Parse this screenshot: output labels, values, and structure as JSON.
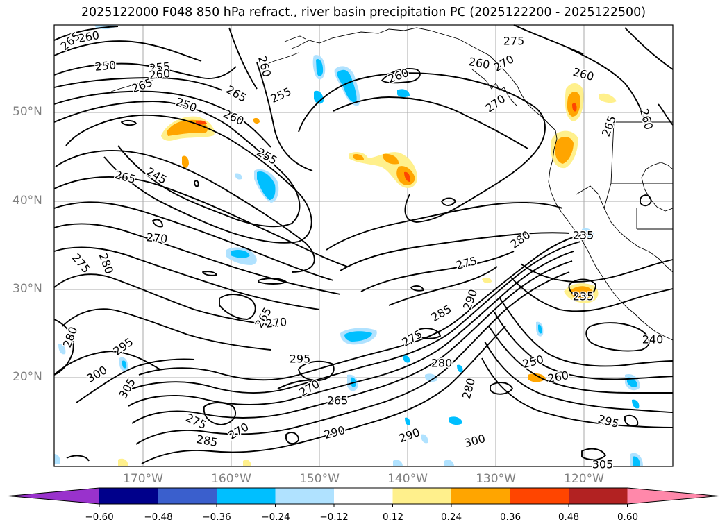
{
  "title": "2025122000 F048 850 hPa refract., river basin precipitation PC (2025122200 - 2025122500)",
  "lat_labels": [
    "50°N",
    "40°N",
    "30°N",
    "20°N"
  ],
  "lon_labels": [
    "170°W",
    "160°W",
    "150°W",
    "140°W",
    "130°W",
    "120°W"
  ],
  "colorbar": {
    "ticks": [
      "−0.60",
      "−0.48",
      "−0.36",
      "−0.24",
      "−0.12",
      "0.12",
      "0.24",
      "0.36",
      "0.48",
      "0.60"
    ],
    "colors": [
      "#9932cc",
      "#00008b",
      "#3a5fcd",
      "#00bfff",
      "#b0e2ff",
      "#ffffff",
      "#fff08c",
      "#ffa500",
      "#ff4500",
      "#b22222",
      "#ff88aa"
    ]
  },
  "contour_labels": [
    "265",
    "260",
    "250",
    "255",
    "260",
    "265",
    "260",
    "255",
    "265",
    "250",
    "260",
    "255",
    "245",
    "265",
    "270",
    "275",
    "280",
    "280",
    "295",
    "300",
    "305",
    "265",
    "270",
    "295",
    "275",
    "270",
    "285",
    "270",
    "265",
    "290",
    "260",
    "275",
    "270",
    "260",
    "275",
    "280",
    "275",
    "285",
    "290",
    "280",
    "280",
    "290",
    "300",
    "235",
    "235",
    "265",
    "260",
    "240",
    "250",
    "260",
    "295",
    "305",
    "270",
    "260"
  ],
  "colors": {
    "frame": "#000000",
    "grid": "#aaaaaa",
    "contour": "#000000",
    "coast": "#000000"
  }
}
